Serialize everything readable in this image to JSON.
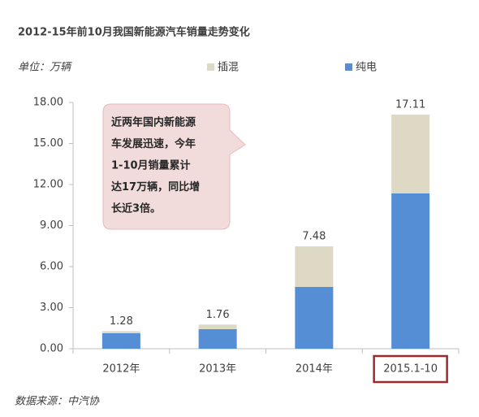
{
  "chart_data": {
    "type": "stacked-bar",
    "title": "2012-15年前10月我国新能源汽车销量走势变化",
    "unit_label": "单位：万辆",
    "source": "数据来源：中汽协",
    "categories": [
      "2012年",
      "2013年",
      "2014年",
      "2015.1-10"
    ],
    "series": [
      {
        "name": "纯电",
        "color": "#558ed5",
        "values": [
          1.13,
          1.43,
          4.52,
          11.35
        ]
      },
      {
        "name": "插混",
        "color": "#ddd9c4",
        "values": [
          0.15,
          0.33,
          2.96,
          5.76
        ]
      }
    ],
    "totals": [
      1.28,
      1.76,
      7.48,
      17.11
    ],
    "ylim": [
      0,
      18
    ],
    "yticks": [
      {
        "value": 0,
        "label": "0.00"
      },
      {
        "value": 3,
        "label": "3.00"
      },
      {
        "value": 6,
        "label": "6.00"
      },
      {
        "value": 9,
        "label": "9.00"
      },
      {
        "value": 12,
        "label": "12.00"
      },
      {
        "value": 15,
        "label": "15.00"
      },
      {
        "value": 18,
        "label": "18.00"
      }
    ],
    "annotation": [
      "近两年国内新能源",
      "车发展迅速，今年",
      "1-10月销量累计",
      "达17万辆，同比增",
      "长近3倍。"
    ],
    "highlighted_category": 3
  }
}
